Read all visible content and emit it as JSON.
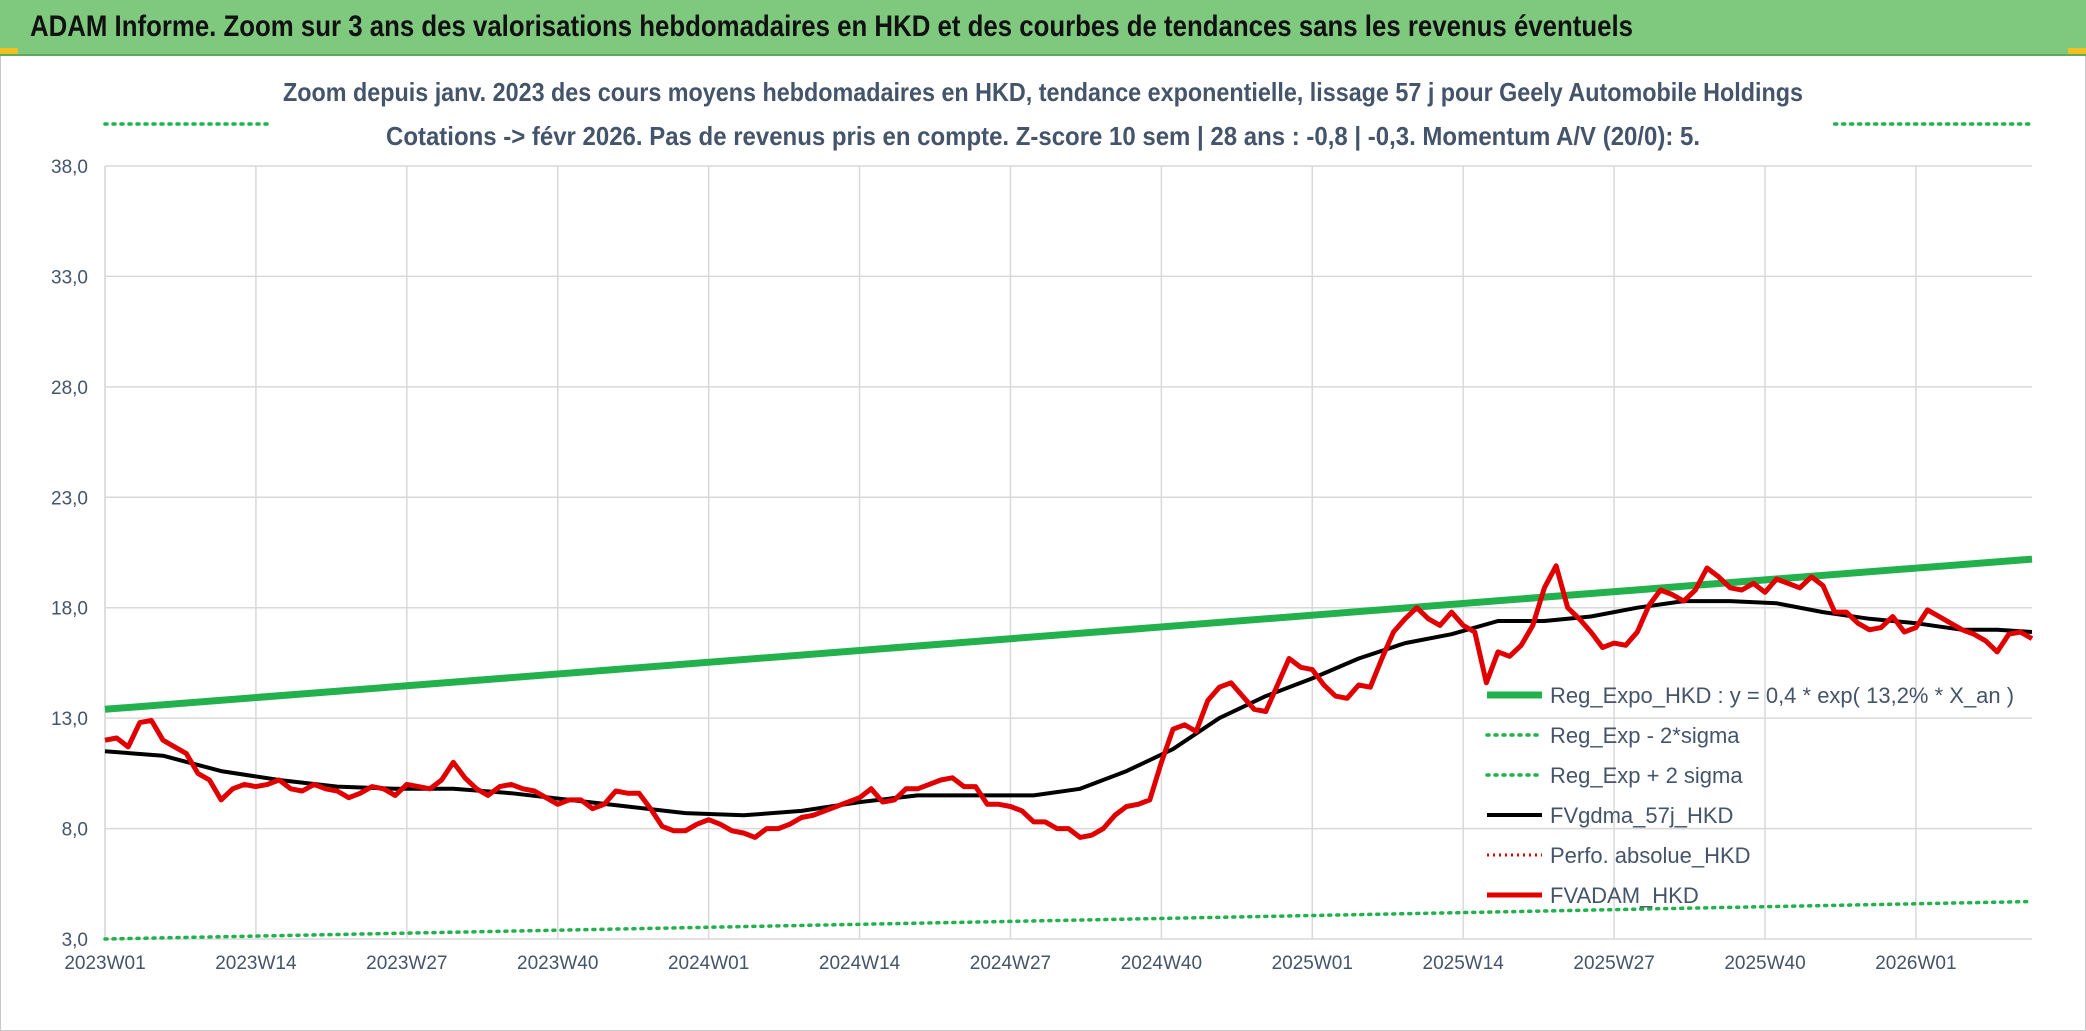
{
  "header": {
    "title": "ADAM Informe. Zoom sur 3 ans des valorisations hebdomadaires en HKD et des courbes de tendances sans les revenus éventuels"
  },
  "colors": {
    "banner": "#7fc97f",
    "trend": "#22b14c",
    "sigma": "#22b14c",
    "smooth": "#000000",
    "perfo": "#e00000",
    "price": "#e00000",
    "grid": "#d9d9d9",
    "text": "#44546a"
  },
  "chart_data": {
    "type": "line",
    "title": "Zoom depuis janv. 2023 des cours moyens hebdomadaires en HKD, tendance exponentielle, lissage 57 j pour Geely Automobile Holdings",
    "subtitle": "Cotations -> févr 2026. Pas de revenus pris en compte. Z-score 10 sem | 28 ans : -0,8 | -0,3. Momentum A/V (20/0): 5.",
    "ylim": [
      3,
      38
    ],
    "y_ticks": [
      "3,0",
      "8,0",
      "13,0",
      "18,0",
      "23,0",
      "28,0",
      "33,0",
      "38,0"
    ],
    "x_ticks": [
      "2023W01",
      "2023W14",
      "2023W27",
      "2023W40",
      "2024W01",
      "2024W14",
      "2024W27",
      "2024W40",
      "2025W01",
      "2025W14",
      "2025W27",
      "2025W40",
      "2026W01"
    ],
    "x_ticks_index": [
      0,
      13,
      26,
      39,
      52,
      65,
      78,
      91,
      104,
      117,
      130,
      143,
      156
    ],
    "n_weeks": 166,
    "legend": [
      {
        "key": "trend",
        "label": "Reg_Expo_HKD : y = 0,4 * exp( 13,2% *  X_an )",
        "style": "thick"
      },
      {
        "key": "lower",
        "label": "Reg_Exp - 2*sigma",
        "style": "dotted-green"
      },
      {
        "key": "upper",
        "label": "Reg_Exp + 2 sigma",
        "style": "dotted-green"
      },
      {
        "key": "smooth",
        "label": "FVgdma_57j_HKD",
        "style": "black"
      },
      {
        "key": "perfo",
        "label": "Perfo. absolue_HKD",
        "style": "dotted-red"
      },
      {
        "key": "price",
        "label": "FVADAM_HKD",
        "style": "red"
      }
    ],
    "series": {
      "trend": {
        "name": "Reg_Expo_HKD",
        "x": [
          0,
          166
        ],
        "y": [
          13.4,
          20.2
        ]
      },
      "lower": {
        "name": "Reg_Exp - 2*sigma",
        "x": [
          0,
          166
        ],
        "y": [
          3.0,
          4.7
        ]
      },
      "upper": {
        "name": "Reg_Exp + 2 sigma",
        "x": [
          0,
          14,
          149,
          166
        ],
        "y": [
          40.0,
          40.0,
          40.0,
          40.0
        ]
      },
      "smooth": {
        "name": "FVgdma_57j_HKD",
        "x": [
          0,
          5,
          10,
          15,
          20,
          25,
          30,
          35,
          40,
          45,
          50,
          55,
          60,
          65,
          70,
          75,
          80,
          84,
          88,
          92,
          96,
          100,
          104,
          108,
          112,
          116,
          120,
          124,
          128,
          132,
          136,
          140,
          144,
          148,
          152,
          156,
          160,
          163,
          166
        ],
        "y": [
          11.5,
          11.3,
          10.6,
          10.2,
          9.9,
          9.8,
          9.8,
          9.6,
          9.3,
          9.0,
          8.7,
          8.6,
          8.8,
          9.2,
          9.5,
          9.5,
          9.5,
          9.8,
          10.6,
          11.6,
          13.0,
          14.0,
          14.8,
          15.7,
          16.4,
          16.8,
          17.4,
          17.4,
          17.6,
          18.0,
          18.3,
          18.3,
          18.2,
          17.8,
          17.5,
          17.3,
          17.0,
          17.0,
          16.9
        ]
      },
      "price": {
        "name": "FVADAM_HKD",
        "x": [
          0,
          1,
          2,
          3,
          4,
          5,
          6,
          7,
          8,
          9,
          10,
          11,
          12,
          13,
          14,
          15,
          16,
          17,
          18,
          19,
          20,
          21,
          22,
          23,
          24,
          25,
          26,
          27,
          28,
          29,
          30,
          31,
          32,
          33,
          34,
          35,
          36,
          37,
          38,
          39,
          40,
          41,
          42,
          43,
          44,
          45,
          46,
          47,
          48,
          49,
          50,
          51,
          52,
          53,
          54,
          55,
          56,
          57,
          58,
          59,
          60,
          61,
          62,
          63,
          64,
          65,
          66,
          67,
          68,
          69,
          70,
          71,
          72,
          73,
          74,
          75,
          76,
          77,
          78,
          79,
          80,
          81,
          82,
          83,
          84,
          85,
          86,
          87,
          88,
          89,
          90,
          91,
          92,
          93,
          94,
          95,
          96,
          97,
          98,
          99,
          100,
          101,
          102,
          103,
          104,
          105,
          106,
          107,
          108,
          109,
          110,
          111,
          112,
          113,
          114,
          115,
          116,
          117,
          118,
          119,
          120,
          121,
          122,
          123,
          124,
          125,
          126,
          127,
          128,
          129,
          130,
          131,
          132,
          133,
          134,
          135,
          136,
          137,
          138,
          139,
          140,
          141,
          142,
          143,
          144,
          145,
          146,
          147,
          148,
          149,
          150,
          151,
          152,
          153,
          154,
          155,
          156,
          157,
          158,
          159,
          160,
          161,
          162,
          163,
          164,
          165,
          166
        ],
        "y": [
          12.0,
          12.1,
          11.7,
          12.8,
          12.9,
          12.0,
          11.7,
          11.4,
          10.5,
          10.2,
          9.3,
          9.8,
          10.0,
          9.9,
          10.0,
          10.2,
          9.8,
          9.7,
          10.0,
          9.8,
          9.7,
          9.4,
          9.6,
          9.9,
          9.8,
          9.5,
          10.0,
          9.9,
          9.8,
          10.2,
          11.0,
          10.3,
          9.8,
          9.5,
          9.9,
          10.0,
          9.8,
          9.7,
          9.4,
          9.1,
          9.3,
          9.3,
          8.9,
          9.1,
          9.7,
          9.6,
          9.6,
          8.9,
          8.1,
          7.9,
          7.9,
          8.2,
          8.4,
          8.2,
          7.9,
          7.8,
          7.6,
          8.0,
          8.0,
          8.2,
          8.5,
          8.6,
          8.8,
          9.0,
          9.2,
          9.4,
          9.8,
          9.2,
          9.3,
          9.8,
          9.8,
          10.0,
          10.2,
          10.3,
          9.9,
          9.9,
          9.1,
          9.1,
          9.0,
          8.8,
          8.3,
          8.3,
          8.0,
          8.0,
          7.6,
          7.7,
          8.0,
          8.6,
          9.0,
          9.1,
          9.3,
          11.0,
          12.5,
          12.7,
          12.4,
          13.8,
          14.4,
          14.6,
          14.0,
          13.4,
          13.3,
          14.5,
          15.7,
          15.3,
          15.2,
          14.5,
          14.0,
          13.9,
          14.5,
          14.4,
          15.7,
          16.9,
          17.5,
          18.0,
          17.5,
          17.2,
          17.8,
          17.2,
          16.9,
          14.6,
          16.0,
          15.8,
          16.3,
          17.2,
          18.9,
          19.9,
          18.0,
          17.5,
          16.9,
          16.2,
          16.4,
          16.3,
          16.9,
          18.1,
          18.8,
          18.6,
          18.3,
          18.8,
          19.8,
          19.4,
          18.9,
          18.8,
          19.1,
          18.7,
          19.3,
          19.1,
          18.9,
          19.4,
          19.0,
          17.8,
          17.8,
          17.3,
          17.0,
          17.1,
          17.6,
          16.9,
          17.1,
          17.9,
          17.6,
          17.3,
          17.0,
          16.8,
          16.5,
          16.0,
          16.8,
          16.9,
          16.6
        ]
      }
    }
  }
}
